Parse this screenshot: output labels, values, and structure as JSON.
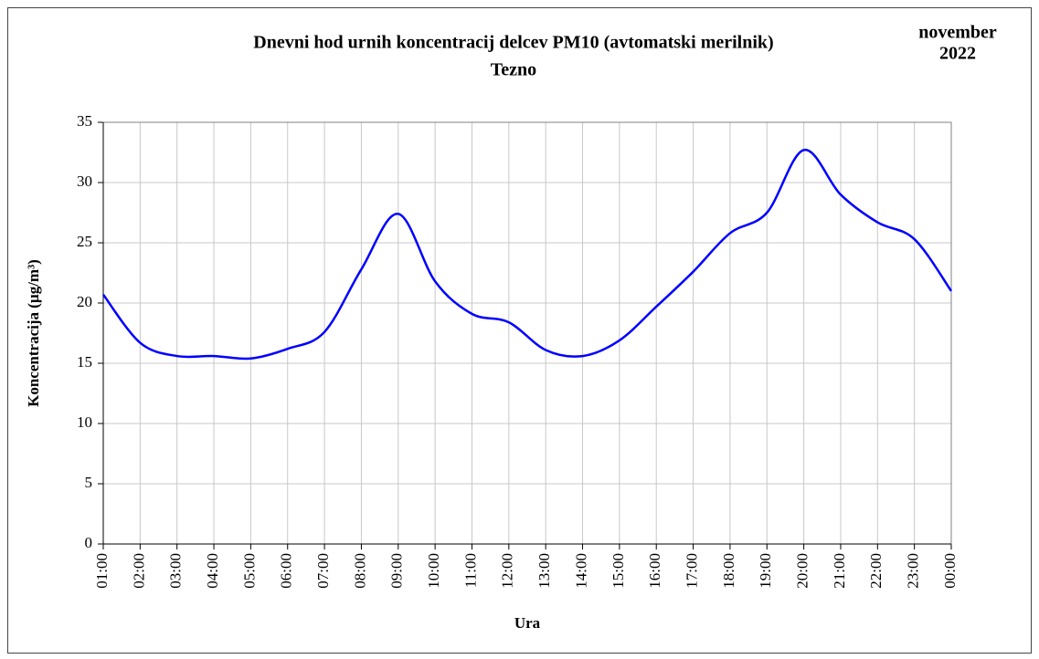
{
  "chart_data": {
    "type": "line",
    "title": "Dnevni hod urnih koncentracij  delcev PM10 (avtomatski merilnik)",
    "subtitle": "Tezno",
    "period": [
      "november",
      "2022"
    ],
    "x_label": "Ura",
    "y_label": "Koncentracija (µg/m³)",
    "categories": [
      "01:00",
      "02:00",
      "03:00",
      "04:00",
      "05:00",
      "06:00",
      "07:00",
      "08:00",
      "09:00",
      "10:00",
      "11:00",
      "12:00",
      "13:00",
      "14:00",
      "15:00",
      "16:00",
      "17:00",
      "18:00",
      "19:00",
      "20:00",
      "21:00",
      "22:00",
      "23:00",
      "00:00"
    ],
    "values": [
      20.7,
      16.7,
      15.6,
      15.6,
      15.4,
      16.2,
      17.6,
      22.8,
      27.4,
      21.8,
      19.1,
      18.4,
      16.1,
      15.6,
      16.9,
      19.7,
      22.6,
      25.8,
      27.5,
      32.7,
      29.0,
      26.7,
      25.3,
      21.0
    ],
    "color": "#0000ff",
    "ylim": [
      0,
      35
    ],
    "yticks": [
      0,
      5,
      10,
      15,
      20,
      25,
      30,
      35
    ],
    "grid": true
  }
}
